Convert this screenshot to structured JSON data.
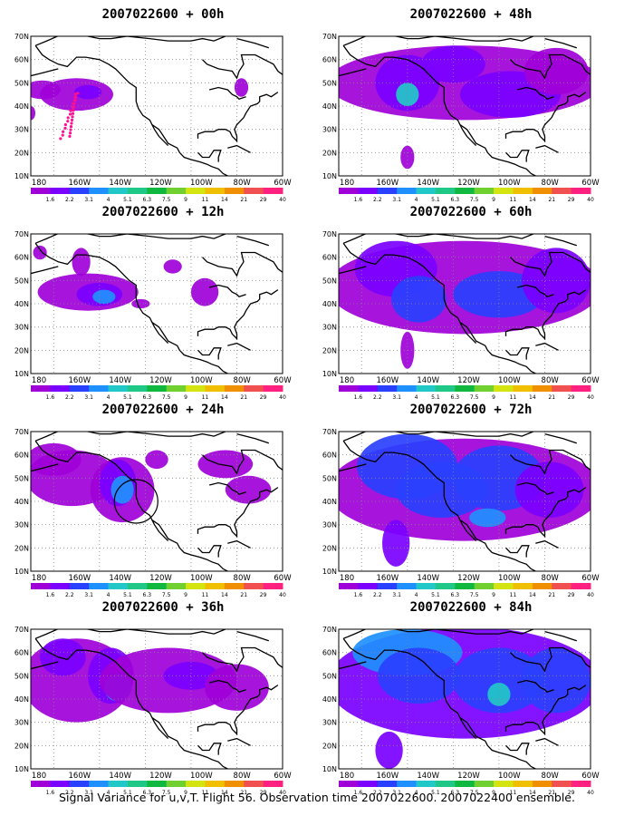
{
  "colorbar": {
    "labels": [
      "1.6",
      "2.2",
      "3.1",
      "4",
      "5.1",
      "6.3",
      "7.5",
      "9",
      "11",
      "14",
      "21",
      "29",
      "40"
    ],
    "colors": [
      "#a000d8",
      "#7a00ff",
      "#2a40ff",
      "#1e90ff",
      "#22c8c8",
      "#20c888",
      "#10b840",
      "#70d030",
      "#d4e410",
      "#f0c000",
      "#f09000",
      "#f05050",
      "#ff2080"
    ]
  },
  "axes": {
    "y_labels": [
      "70N",
      "60N",
      "50N",
      "40N",
      "30N",
      "20N",
      "10N"
    ],
    "x_labels": [
      "180",
      "160W",
      "140W",
      "120W",
      "100W",
      "80W",
      "60W"
    ]
  },
  "panels": [
    {
      "id": "p00",
      "title": "2007022600 + 00h",
      "level": 0,
      "flight_track": true,
      "circle": false
    },
    {
      "id": "p12",
      "title": "2007022600 + 12h",
      "level": 1,
      "flight_track": false,
      "circle": false
    },
    {
      "id": "p24",
      "title": "2007022600 + 24h",
      "level": 2,
      "flight_track": false,
      "circle": true
    },
    {
      "id": "p36",
      "title": "2007022600 + 36h",
      "level": 3,
      "flight_track": false,
      "circle": false
    },
    {
      "id": "p48",
      "title": "2007022600 + 48h",
      "level": 4,
      "flight_track": false,
      "circle": false
    },
    {
      "id": "p60",
      "title": "2007022600 + 60h",
      "level": 5,
      "flight_track": false,
      "circle": false
    },
    {
      "id": "p72",
      "title": "2007022600 + 72h",
      "level": 6,
      "flight_track": false,
      "circle": false
    },
    {
      "id": "p84",
      "title": "2007022600 + 84h",
      "level": 7,
      "flight_track": false,
      "circle": false
    }
  ],
  "caption": "Signal Variance for u,v,T. Flight 56. Observation time 2007022600. 2007022400 ensemble."
}
